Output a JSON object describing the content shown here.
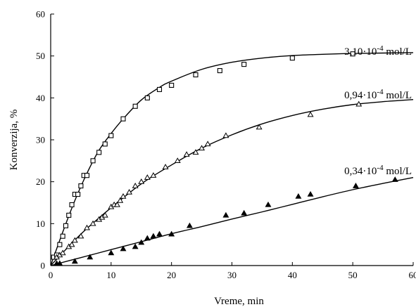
{
  "chart_data": {
    "type": "scatter",
    "title": "",
    "xlabel": "Vreme, min",
    "ylabel": "Konverzija, %",
    "xlim": [
      0,
      60
    ],
    "ylim": [
      0,
      60
    ],
    "xticks": [
      0,
      10,
      20,
      30,
      40,
      50,
      60
    ],
    "yticks": [
      0,
      10,
      20,
      30,
      40,
      50,
      60
    ],
    "grid": false,
    "legend": "none",
    "series": [
      {
        "name": "3,10·10",
        "exp": "-4",
        "unit": " mol/L",
        "marker": "square",
        "x": [
          0.5,
          1,
          1.5,
          2,
          2.5,
          3,
          3.5,
          4,
          4.5,
          5,
          5.5,
          6,
          7,
          8,
          9,
          10,
          12,
          14,
          16,
          18,
          20,
          24,
          28,
          32,
          40,
          50
        ],
        "y": [
          2,
          2.5,
          5,
          7,
          9.5,
          12,
          14.5,
          17,
          17,
          19,
          21.5,
          21.5,
          25,
          27,
          29,
          31,
          35,
          38,
          40,
          42,
          43,
          45.5,
          46.5,
          48,
          49.5,
          50.5
        ],
        "fit": {
          "x": [
            0,
            2,
            4,
            6,
            8,
            10,
            12,
            15,
            18,
            20,
            25,
            30,
            35,
            40,
            45,
            50,
            55,
            60
          ],
          "y": [
            0,
            8,
            15.5,
            22,
            27.5,
            31.5,
            35,
            39.5,
            42.5,
            44,
            46.8,
            48.5,
            49.5,
            50.1,
            50.4,
            50.6,
            50.7,
            50.8
          ]
        }
      },
      {
        "name": "0,94·10",
        "exp": "-4",
        "unit": " mol/L",
        "marker": "triangle-open",
        "x": [
          1,
          1.5,
          2,
          3,
          3.5,
          4,
          5,
          6,
          7,
          8,
          8.5,
          9,
          10,
          10.5,
          11,
          11.5,
          12,
          13,
          14,
          15,
          16,
          17,
          19,
          21,
          22.5,
          24,
          25,
          26,
          29,
          34.5,
          43,
          51
        ],
        "y": [
          2,
          2.5,
          3,
          4.5,
          5,
          6,
          7,
          9,
          10,
          11,
          11.5,
          12,
          14,
          14.5,
          14.5,
          15.5,
          16.5,
          17.5,
          19,
          20,
          21,
          21.5,
          23.5,
          25,
          26.5,
          27,
          28,
          29,
          31,
          33,
          36,
          38.5
        ],
        "fit": {
          "x": [
            0,
            5,
            10,
            15,
            20,
            25,
            30,
            35,
            40,
            45,
            50,
            55,
            60
          ],
          "y": [
            0,
            7.5,
            13.8,
            19.5,
            24,
            28,
            31.2,
            33.8,
            35.8,
            37.3,
            38.4,
            39.1,
            39.6
          ]
        }
      },
      {
        "name": "0,34·10",
        "exp": "-4",
        "unit": " mol/L",
        "marker": "triangle-filled",
        "x": [
          1,
          1.5,
          4,
          6.5,
          10,
          12,
          14,
          15,
          16,
          17,
          18,
          20,
          23,
          29,
          32,
          36,
          41,
          43,
          50.5,
          57
        ],
        "y": [
          0.5,
          0.5,
          1,
          2,
          3,
          4,
          4.5,
          5.5,
          6.5,
          7,
          7.5,
          7.5,
          9.5,
          12,
          12.5,
          14.5,
          16.5,
          17,
          19,
          20.5
        ],
        "fit": {
          "x": [
            0,
            5,
            10,
            15,
            20,
            25,
            30,
            35,
            40,
            45,
            50,
            55,
            60
          ],
          "y": [
            0,
            1.9,
            3.8,
            5.7,
            7.6,
            9.3,
            11.1,
            12.8,
            14.6,
            16.4,
            18.1,
            19.6,
            21
          ]
        }
      }
    ]
  }
}
